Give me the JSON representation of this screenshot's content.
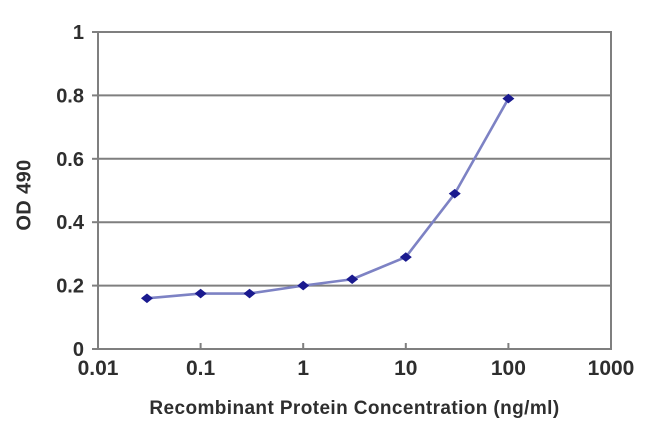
{
  "figure": {
    "background": "#ffffff"
  },
  "chart_data": {
    "type": "line",
    "title": "",
    "xlabel": "Recombinant Protein Concentration (ng/ml)",
    "ylabel": "OD 490",
    "x_scale": "log",
    "y_scale": "linear",
    "xlim": [
      0.01,
      1000
    ],
    "ylim": [
      0,
      1
    ],
    "grid": "horizontal",
    "legend": "none",
    "marker": "diamond",
    "x": [
      0.03,
      0.1,
      0.3,
      1,
      3,
      10,
      30,
      100
    ],
    "y": [
      0.16,
      0.175,
      0.175,
      0.2,
      0.22,
      0.29,
      0.49,
      0.79
    ],
    "x_ticks": [
      {
        "value": 0.01,
        "label": "0.01"
      },
      {
        "value": 0.1,
        "label": "0.1"
      },
      {
        "value": 1,
        "label": "1"
      },
      {
        "value": 10,
        "label": "10"
      },
      {
        "value": 100,
        "label": "100"
      },
      {
        "value": 1000,
        "label": "1000"
      }
    ],
    "y_ticks": [
      {
        "value": 0,
        "label": "0"
      },
      {
        "value": 0.2,
        "label": "0.2"
      },
      {
        "value": 0.4,
        "label": "0.4"
      },
      {
        "value": 0.6,
        "label": "0.6"
      },
      {
        "value": 0.8,
        "label": "0.8"
      },
      {
        "value": 1,
        "label": "1"
      }
    ],
    "colors": {
      "marker": "#1a1a8f",
      "line": "#7d82c4",
      "grid": "#7f7f7f",
      "axis": "#7f7f7f",
      "text": "#2e2e2e",
      "background": "#ffffff"
    }
  }
}
